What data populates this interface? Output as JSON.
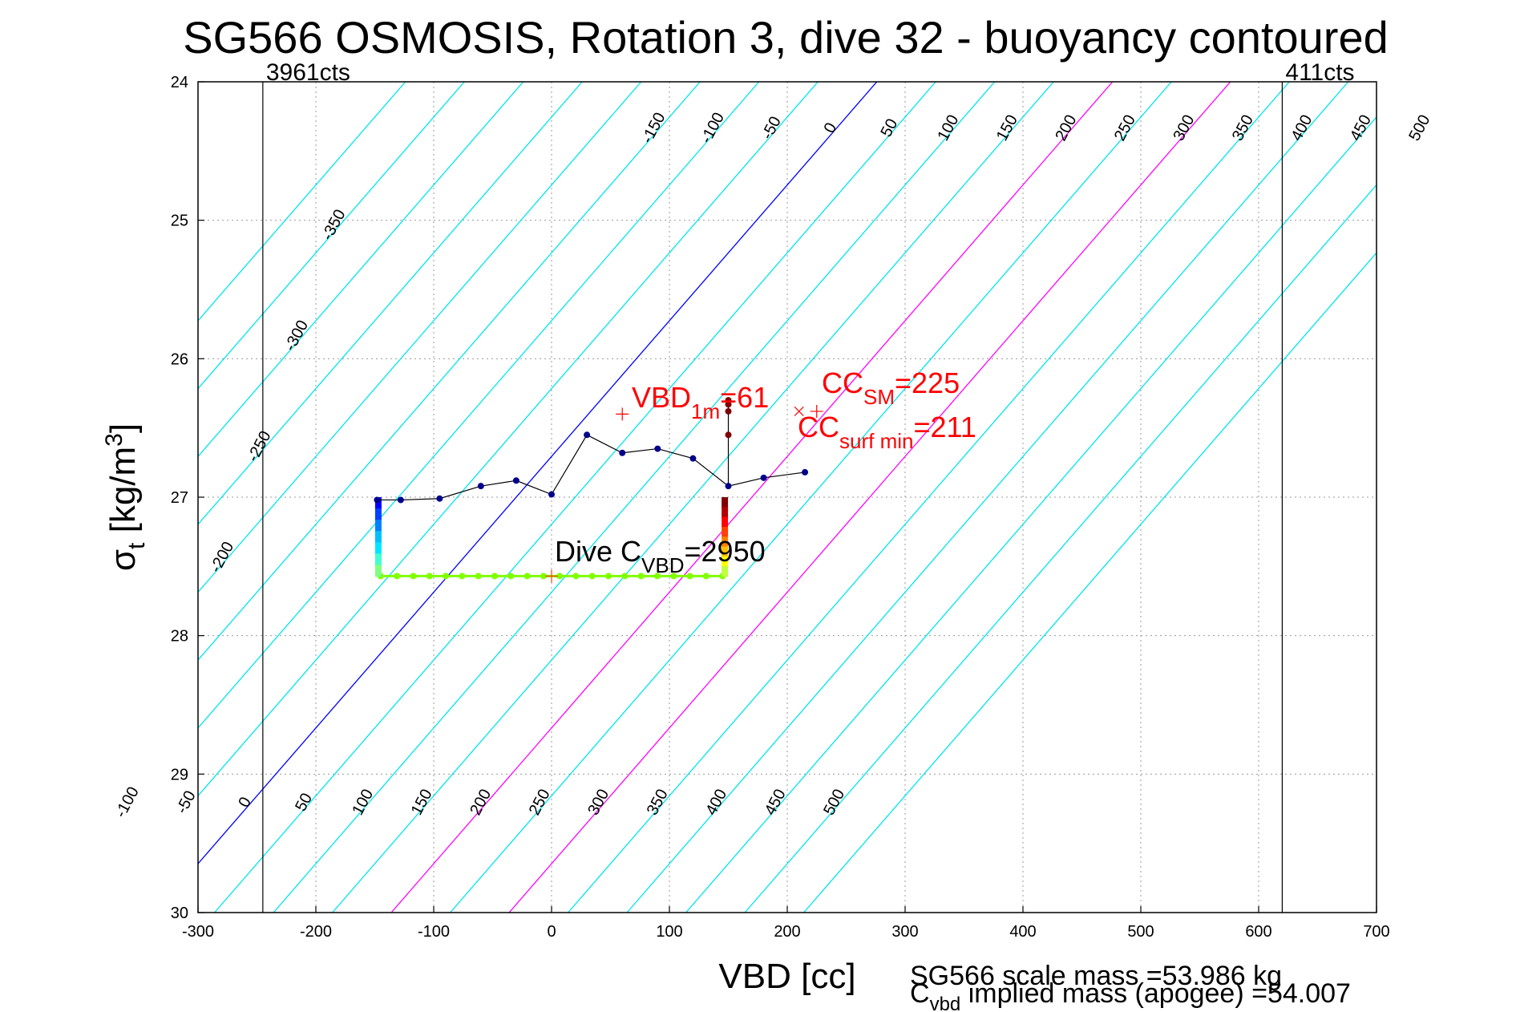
{
  "chart_data": {
    "type": "scatter",
    "title": "SG566 OSMOSIS, Rotation 3, dive 32 - buoyancy contoured",
    "xlabel": "VBD [cc]",
    "ylabel_main": "σ",
    "ylabel_sub": "t",
    "ylabel_unit": " [kg/m",
    "ylabel_sup": "3",
    "ylabel_close": "]",
    "xlim": [
      -300,
      700
    ],
    "ylim": [
      24,
      30
    ],
    "y_reversed": true,
    "grid": true,
    "x_ticks": [
      -300,
      -200,
      -100,
      0,
      100,
      200,
      300,
      400,
      500,
      600,
      700
    ],
    "x_tick_labels": [
      "-300",
      "-200",
      "-100",
      "0",
      "100",
      "200",
      "300",
      "400",
      "500",
      "600",
      "700"
    ],
    "y_ticks": [
      24,
      25,
      26,
      27,
      28,
      29,
      30
    ],
    "y_tick_labels": [
      "24",
      "25",
      "26",
      "27",
      "28",
      "29",
      "30"
    ],
    "limit_lines": [
      {
        "x": -245,
        "label": "3961cts"
      },
      {
        "x": 620,
        "label": "411cts"
      }
    ],
    "buoyancy_contours": {
      "slope_cc_per_sigma": 40,
      "ref_sigma": 27,
      "zero_vbd_at_ref": -30,
      "levels": [
        -400,
        -350,
        -300,
        -250,
        -200,
        -150,
        -100,
        -50,
        0,
        50,
        100,
        150,
        200,
        250,
        300,
        350,
        400,
        450,
        500,
        550
      ],
      "default_color": "#00e5ee",
      "special": [
        {
          "level": 0,
          "color": "#0000ff"
        },
        {
          "level": 200,
          "color": "#ff00ff"
        },
        {
          "level": 300,
          "color": "#ff00ff"
        }
      ],
      "labels_top": {
        "sigma": 24.35,
        "values": [
          "-150",
          "-100",
          "-50",
          "0",
          "50",
          "100",
          "150",
          "200",
          "250",
          "300",
          "350",
          "400",
          "450",
          "500"
        ],
        "levels": [
          -150,
          -100,
          -50,
          0,
          50,
          100,
          150,
          200,
          250,
          300,
          350,
          400,
          450,
          500
        ]
      },
      "labels_left": [
        {
          "level": -350,
          "sigma": 25.05,
          "text": "-350"
        },
        {
          "level": -300,
          "sigma": 25.85,
          "text": "-300"
        },
        {
          "level": -250,
          "sigma": 26.65,
          "text": "-250"
        },
        {
          "level": -200,
          "sigma": 27.45,
          "text": "-200"
        }
      ],
      "labels_bottom": {
        "sigma": 29.22,
        "values": [
          "-100",
          "-50",
          "0",
          "50",
          "100",
          "150",
          "200",
          "250",
          "300",
          "350",
          "400",
          "450",
          "500"
        ],
        "levels": [
          -100,
          -50,
          0,
          50,
          100,
          150,
          200,
          250,
          300,
          350,
          400,
          450,
          500
        ]
      }
    },
    "profile_line": {
      "color": "#000000",
      "marker_color": "#00008b",
      "points": [
        [
          -148,
          27.02
        ],
        [
          -128,
          27.02
        ],
        [
          -95,
          27.01
        ],
        [
          -60,
          26.92
        ],
        [
          -30,
          26.88
        ],
        [
          0,
          26.98
        ],
        [
          30,
          26.55
        ],
        [
          60,
          26.68
        ],
        [
          90,
          26.65
        ],
        [
          120,
          26.72
        ],
        [
          150,
          26.92
        ],
        [
          180,
          26.86
        ],
        [
          215,
          26.82
        ]
      ],
      "branch": [
        [
          150,
          26.92
        ],
        [
          150,
          26.3
        ]
      ],
      "branch_points": [
        [
          150,
          26.3
        ],
        [
          150,
          26.33
        ],
        [
          150,
          26.38
        ],
        [
          150,
          26.55
        ]
      ],
      "branch_color": "#800000"
    },
    "dive_segment": {
      "color": "#7fff00",
      "sigma": 27.57,
      "x_start": -145,
      "x_end": 145,
      "n_points": 22
    },
    "left_column": {
      "x": -147,
      "sigma_top": 27.0,
      "sigma_bottom": 27.57,
      "colors": [
        "#0000ff",
        "#0040ff",
        "#0080ff",
        "#00bfff",
        "#00e5ff",
        "#40ffd0",
        "#7fff80"
      ]
    },
    "right_column": {
      "x": 147,
      "sigma_top": 27.0,
      "sigma_bottom": 27.57,
      "colors": [
        "#800000",
        "#b00000",
        "#ff0000",
        "#ff4000",
        "#ff8000",
        "#ffbf00",
        "#ffff00",
        "#bfff40"
      ]
    },
    "markers": [
      {
        "x": 60,
        "y": 26.4,
        "symbol": "+",
        "color": "#ff0000"
      },
      {
        "x": 225,
        "y": 26.38,
        "symbol": "+",
        "color": "#ff0000"
      },
      {
        "x": 210,
        "y": 26.38,
        "symbol": "x",
        "color": "#ff0000"
      },
      {
        "x": 0,
        "y": 27.57,
        "symbol": "+",
        "color": "#ff4000"
      }
    ],
    "annotations": {
      "vbd": {
        "main": "VBD",
        "sub": "1m",
        "rest": "=61"
      },
      "cc_sm": {
        "main": "CC",
        "sub": "SM",
        "rest": "=225"
      },
      "cc_surf": {
        "main": "CC",
        "sub": "surf min",
        "rest": "=211"
      },
      "dive_c": {
        "main": "Dive C",
        "sub": "VBD",
        "rest": "=2950"
      }
    }
  },
  "footer": {
    "scale_mass": "SG566 scale mass =53.986 kg",
    "implied_main": "C",
    "implied_sub": "vbd",
    "implied_rest": " implied mass (apogee) =54.007"
  }
}
